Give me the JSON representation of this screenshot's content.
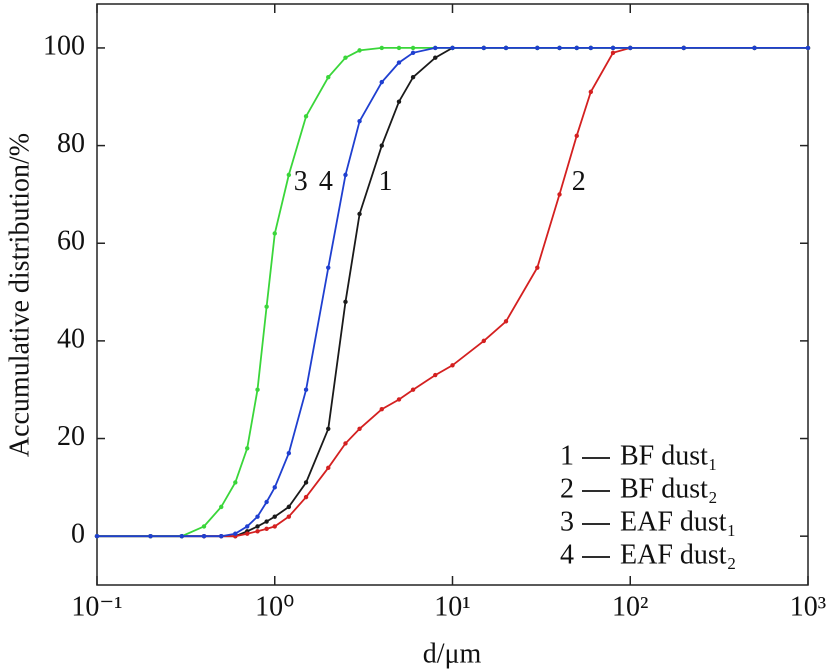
{
  "chart_data": {
    "type": "line",
    "xlabel": "d/μm",
    "ylabel": "Accumulative distribution/%",
    "xscale": "log",
    "x": [
      0.1,
      0.2,
      0.3,
      0.4,
      0.5,
      0.6,
      0.7,
      0.8,
      0.9,
      1,
      1.2,
      1.5,
      2,
      2.5,
      3,
      4,
      5,
      6,
      8,
      10,
      15,
      20,
      30,
      40,
      50,
      60,
      80,
      100,
      200,
      500,
      1000
    ],
    "series": [
      {
        "label": "1",
        "name": "BF dust₁",
        "color": "#1a1a1a",
        "values": [
          0,
          0,
          0,
          0,
          0,
          0,
          1,
          2,
          3,
          4,
          6,
          11,
          22,
          48,
          66,
          80,
          89,
          94,
          98,
          100,
          100,
          100,
          100,
          100,
          100,
          100,
          100,
          100,
          100,
          100,
          100
        ]
      },
      {
        "label": "2",
        "name": "BF dust₂",
        "color": "#d42020",
        "values": [
          0,
          0,
          0,
          0,
          0,
          0,
          0.5,
          1,
          1.5,
          2,
          4,
          8,
          14,
          19,
          22,
          26,
          28,
          30,
          33,
          35,
          40,
          44,
          55,
          70,
          82,
          91,
          99,
          100,
          100,
          100,
          100
        ]
      },
      {
        "label": "3",
        "name": "EAF dust₁",
        "color": "#3ad63a",
        "values": [
          0,
          0,
          0,
          2,
          6,
          11,
          18,
          30,
          47,
          62,
          74,
          86,
          94,
          98,
          99.5,
          100,
          100,
          100,
          100,
          100,
          100,
          100,
          100,
          100,
          100,
          100,
          100,
          100,
          100,
          100,
          100
        ]
      },
      {
        "label": "4",
        "name": "EAF dust₂",
        "color": "#1f3fd0",
        "values": [
          0,
          0,
          0,
          0,
          0,
          0.5,
          2,
          4,
          7,
          10,
          17,
          30,
          55,
          74,
          85,
          93,
          97,
          99,
          100,
          100,
          100,
          100,
          100,
          100,
          100,
          100,
          100,
          100,
          100,
          100,
          100
        ]
      }
    ],
    "xlim": [
      0.1,
      1000
    ],
    "xticks": [
      {
        "value": 0.1,
        "label": "10⁻¹"
      },
      {
        "value": 1,
        "label": "10⁰"
      },
      {
        "value": 10,
        "label": "10¹"
      },
      {
        "value": 100,
        "label": "10²"
      },
      {
        "value": 1000,
        "label": "10³"
      }
    ],
    "ylim": [
      -10,
      109
    ],
    "yticks": [
      0,
      20,
      40,
      60,
      80,
      100
    ],
    "legend": "lower right"
  }
}
